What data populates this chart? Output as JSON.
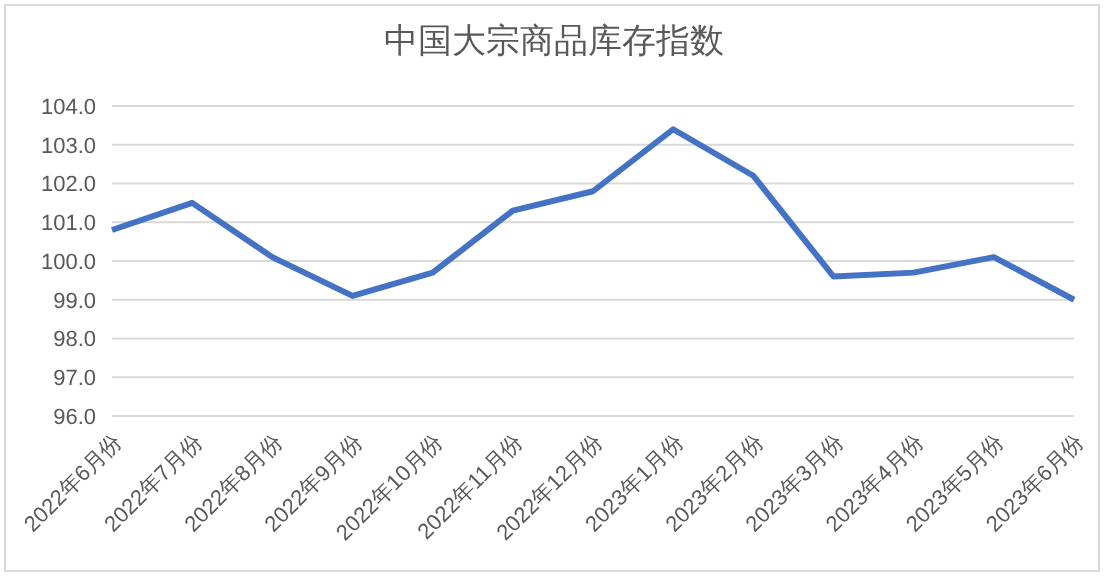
{
  "chart_data": {
    "type": "line",
    "title": "中国大宗商品库存指数",
    "categories": [
      "2022年6月份",
      "2022年7月份",
      "2022年8月份",
      "2022年9月份",
      "2022年10月份",
      "2022年11月份",
      "2022年12月份",
      "2023年1月份",
      "2023年2月份",
      "2023年3月份",
      "2023年4月份",
      "2023年5月份",
      "2023年6月份"
    ],
    "series": [
      {
        "color": "#4472c4",
        "values": [
          100.8,
          101.5,
          100.1,
          99.1,
          99.7,
          101.3,
          101.8,
          103.4,
          102.2,
          99.6,
          99.7,
          100.1,
          99.0
        ]
      }
    ],
    "ylim": [
      96,
      104
    ],
    "yticks": [
      {
        "value": 96,
        "label": "96.0"
      },
      {
        "value": 97,
        "label": "97.0"
      },
      {
        "value": 98,
        "label": "98.0"
      },
      {
        "value": 99,
        "label": "99.0"
      },
      {
        "value": 100,
        "label": "100.0"
      },
      {
        "value": 101,
        "label": "101.0"
      },
      {
        "value": 102,
        "label": "102.0"
      },
      {
        "value": 103,
        "label": "103.0"
      },
      {
        "value": 104,
        "label": "104.0"
      }
    ],
    "grid": "y",
    "legend": false,
    "marker": "none",
    "line_style": "solid"
  }
}
